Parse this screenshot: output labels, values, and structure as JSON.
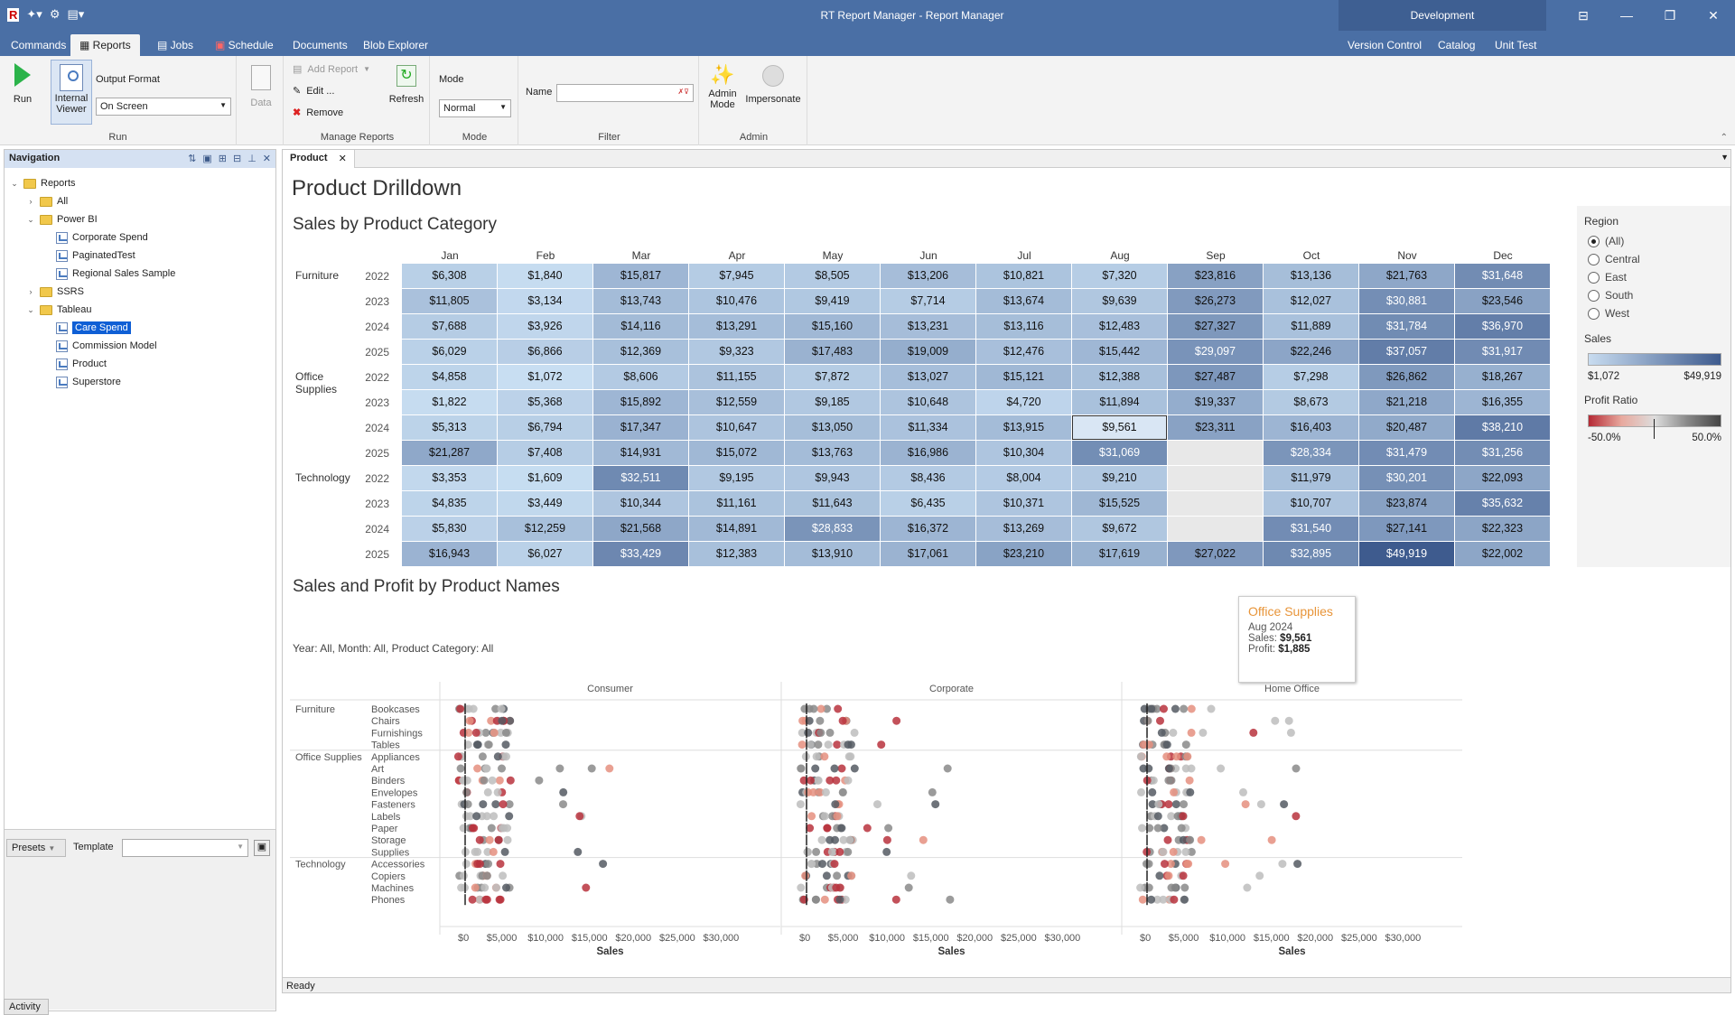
{
  "app": {
    "title": "RT Report Manager - Report Manager",
    "environment": "Development",
    "quick_access": [
      "app-icon",
      "new-icon",
      "settings-icon",
      "layout-icon"
    ]
  },
  "ribbon_tabs": [
    "Commands",
    "Reports",
    "Jobs",
    "Schedule",
    "Documents",
    "Blob Explorer"
  ],
  "active_tab": "Reports",
  "right_tabs": [
    "Version Control",
    "Catalog",
    "Unit Test"
  ],
  "ribbon": {
    "run": {
      "run_label": "Run",
      "internal_viewer_label": "Internal Viewer",
      "output_format_label": "Output Format",
      "output_format_value": "On Screen",
      "group_label": "Run"
    },
    "data_label": "Data",
    "manage": {
      "add_report": "Add Report",
      "edit": "Edit ...",
      "remove": "Remove",
      "refresh": "Refresh",
      "group_label": "Manage Reports"
    },
    "mode": {
      "label": "Mode",
      "value": "Normal",
      "group_label": "Mode"
    },
    "filter": {
      "name_label": "Name",
      "name_value": "",
      "group_label": "Filter"
    },
    "admin": {
      "admin_mode": "Admin Mode",
      "impersonate": "Impersonate",
      "group_label": "Admin"
    }
  },
  "navigation": {
    "title": "Navigation",
    "tree": [
      {
        "label": "Reports",
        "level": 0,
        "type": "folder",
        "expanded": true
      },
      {
        "label": "All",
        "level": 1,
        "type": "folder",
        "expanded": false
      },
      {
        "label": "Power BI",
        "level": 1,
        "type": "folder",
        "expanded": true
      },
      {
        "label": "Corporate Spend",
        "level": 2,
        "type": "report"
      },
      {
        "label": "PaginatedTest",
        "level": 2,
        "type": "report"
      },
      {
        "label": "Regional Sales Sample",
        "level": 2,
        "type": "report"
      },
      {
        "label": "SSRS",
        "level": 1,
        "type": "folder",
        "expanded": false
      },
      {
        "label": "Tableau",
        "level": 1,
        "type": "folder",
        "expanded": true
      },
      {
        "label": "Care Spend",
        "level": 2,
        "type": "report",
        "selected": true
      },
      {
        "label": "Commission Model",
        "level": 2,
        "type": "report"
      },
      {
        "label": "Product",
        "level": 2,
        "type": "report"
      },
      {
        "label": "Superstore",
        "level": 2,
        "type": "report"
      }
    ],
    "presets_label": "Presets",
    "template_label": "Template",
    "activity_label": "Activity"
  },
  "document_tab": "Product",
  "status": "Ready",
  "report": {
    "title": "Product Drilldown",
    "heatmap_title": "Sales by Product Category",
    "dot_title": "Sales and Profit by Product Names",
    "filter_text": "Year: All, Month: All, Product Category: All",
    "tooltip": {
      "title": "Office Supplies",
      "period": "Aug 2024",
      "sales_label": "Sales:",
      "sales": "$9,561",
      "profit_label": "Profit:",
      "profit": "$1,885"
    },
    "legend": {
      "region_title": "Region",
      "regions": [
        "(All)",
        "Central",
        "East",
        "South",
        "West"
      ],
      "selected_region": "(All)",
      "sales_title": "Sales",
      "sales_min": "$1,072",
      "sales_max": "$49,919",
      "profit_title": "Profit Ratio",
      "profit_min": "-50.0%",
      "profit_max": "50.0%"
    }
  },
  "chart_data": [
    {
      "type": "heatmap",
      "title": "Sales by Product Category",
      "columns": [
        "Jan",
        "Feb",
        "Mar",
        "Apr",
        "May",
        "Jun",
        "Jul",
        "Aug",
        "Sep",
        "Oct",
        "Nov",
        "Dec"
      ],
      "rows": [
        {
          "category": "Furniture",
          "year": "2022",
          "values": [
            6308,
            1840,
            15817,
            7945,
            8505,
            13206,
            10821,
            7320,
            23816,
            13136,
            21763,
            31648
          ]
        },
        {
          "category": "Furniture",
          "year": "2023",
          "values": [
            11805,
            3134,
            13743,
            10476,
            9419,
            7714,
            13674,
            9639,
            26273,
            12027,
            30881,
            23546
          ]
        },
        {
          "category": "Furniture",
          "year": "2024",
          "values": [
            7688,
            3926,
            14116,
            13291,
            15160,
            13231,
            13116,
            12483,
            27327,
            11889,
            31784,
            36970
          ]
        },
        {
          "category": "Furniture",
          "year": "2025",
          "values": [
            6029,
            6866,
            12369,
            9323,
            17483,
            19009,
            12476,
            15442,
            29097,
            22246,
            37057,
            31917
          ]
        },
        {
          "category": "Office Supplies",
          "year": "2022",
          "values": [
            4858,
            1072,
            8606,
            11155,
            7872,
            13027,
            15121,
            12388,
            27487,
            7298,
            26862,
            18267
          ]
        },
        {
          "category": "Office Supplies",
          "year": "2023",
          "values": [
            1822,
            5368,
            15892,
            12559,
            9185,
            10648,
            4720,
            11894,
            19337,
            8673,
            21218,
            16355
          ]
        },
        {
          "category": "Office Supplies",
          "year": "2024",
          "values": [
            5313,
            6794,
            17347,
            10647,
            13050,
            11334,
            13915,
            9561,
            23311,
            16403,
            20487,
            38210
          ]
        },
        {
          "category": "Office Supplies",
          "year": "2025",
          "values": [
            21287,
            7408,
            14931,
            15072,
            13763,
            16986,
            10304,
            31069,
            null,
            28334,
            31479,
            31256
          ]
        },
        {
          "category": "Technology",
          "year": "2022",
          "values": [
            3353,
            1609,
            32511,
            9195,
            9943,
            8436,
            8004,
            9210,
            null,
            11979,
            30201,
            22093
          ]
        },
        {
          "category": "Technology",
          "year": "2023",
          "values": [
            4835,
            3449,
            10344,
            11161,
            11643,
            6435,
            10371,
            15525,
            null,
            10707,
            23874,
            35632
          ]
        },
        {
          "category": "Technology",
          "year": "2024",
          "values": [
            5830,
            12259,
            21568,
            14891,
            28833,
            16372,
            13269,
            9672,
            null,
            31540,
            27141,
            22323
          ]
        },
        {
          "category": "Technology",
          "year": "2025",
          "values": [
            16943,
            6027,
            33429,
            12383,
            13910,
            17061,
            23210,
            17619,
            27022,
            32895,
            49919,
            22002
          ]
        }
      ],
      "color_range": [
        1072,
        49919
      ]
    },
    {
      "type": "scatter",
      "title": "Sales and Profit by Product Names",
      "xlabel": "Sales",
      "xticks": [
        "$0",
        "$5,000",
        "$10,000",
        "$15,000",
        "$20,000",
        "$25,000",
        "$30,000"
      ],
      "xlim": [
        0,
        35000
      ],
      "segments": [
        "Consumer",
        "Corporate",
        "Home Office"
      ],
      "categories": [
        {
          "name": "Furniture",
          "subs": [
            "Bookcases",
            "Chairs",
            "Furnishings",
            "Tables"
          ]
        },
        {
          "name": "Office Supplies",
          "subs": [
            "Appliances",
            "Art",
            "Binders",
            "Envelopes",
            "Fasteners",
            "Labels",
            "Paper",
            "Storage",
            "Supplies"
          ]
        },
        {
          "name": "Technology",
          "subs": [
            "Accessories",
            "Copiers",
            "Machines",
            "Phones"
          ]
        }
      ]
    }
  ]
}
